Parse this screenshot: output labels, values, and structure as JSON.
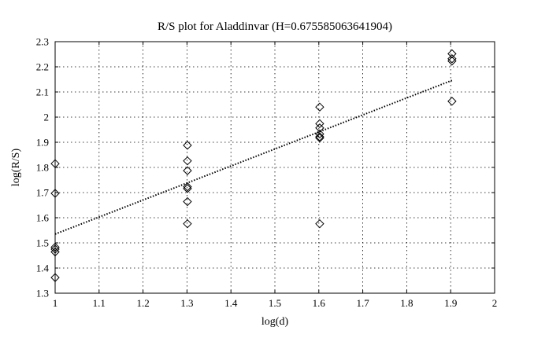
{
  "chart_data": {
    "type": "scatter",
    "title": "R/S plot for Aladdinvar (H=0.675585063641904)",
    "xlabel": "log(d)",
    "ylabel": "log(R/S)",
    "xlim": [
      1,
      2
    ],
    "ylim": [
      1.3,
      2.3
    ],
    "xticks": [
      1,
      1.1,
      1.2,
      1.3,
      1.4,
      1.5,
      1.6,
      1.7,
      1.8,
      1.9,
      2
    ],
    "xtick_labels": [
      "1",
      "1.1",
      "1.2",
      "1.3",
      "1.4",
      "1.5",
      "1.6",
      "1.7",
      "1.8",
      "1.9",
      "2"
    ],
    "yticks": [
      1.3,
      1.4,
      1.5,
      1.6,
      1.7,
      1.8,
      1.9,
      2,
      2.1,
      2.2,
      2.3
    ],
    "ytick_labels": [
      "1.3",
      "1.4",
      "1.5",
      "1.6",
      "1.7",
      "1.8",
      "1.9",
      "2",
      "2.1",
      "2.2",
      "2.3"
    ],
    "grid": true,
    "legend": "none",
    "marker": "diamond",
    "points": [
      {
        "x": 1.0,
        "y": 1.815
      },
      {
        "x": 1.0,
        "y": 1.697
      },
      {
        "x": 1.0,
        "y": 1.483
      },
      {
        "x": 1.0,
        "y": 1.475
      },
      {
        "x": 1.0,
        "y": 1.464
      },
      {
        "x": 1.0,
        "y": 1.362
      },
      {
        "x": 1.301,
        "y": 1.888
      },
      {
        "x": 1.301,
        "y": 1.826
      },
      {
        "x": 1.301,
        "y": 1.787
      },
      {
        "x": 1.301,
        "y": 1.723
      },
      {
        "x": 1.301,
        "y": 1.716
      },
      {
        "x": 1.301,
        "y": 1.664
      },
      {
        "x": 1.301,
        "y": 1.576
      },
      {
        "x": 1.602,
        "y": 2.04
      },
      {
        "x": 1.602,
        "y": 1.974
      },
      {
        "x": 1.602,
        "y": 1.957
      },
      {
        "x": 1.602,
        "y": 1.933
      },
      {
        "x": 1.602,
        "y": 1.922
      },
      {
        "x": 1.602,
        "y": 1.917
      },
      {
        "x": 1.602,
        "y": 1.576
      },
      {
        "x": 1.903,
        "y": 2.252
      },
      {
        "x": 1.903,
        "y": 2.232
      },
      {
        "x": 1.903,
        "y": 2.223
      },
      {
        "x": 1.903,
        "y": 2.063
      }
    ],
    "fit_line": {
      "x": [
        1.0,
        1.903
      ],
      "y": [
        1.535,
        2.146
      ]
    }
  }
}
